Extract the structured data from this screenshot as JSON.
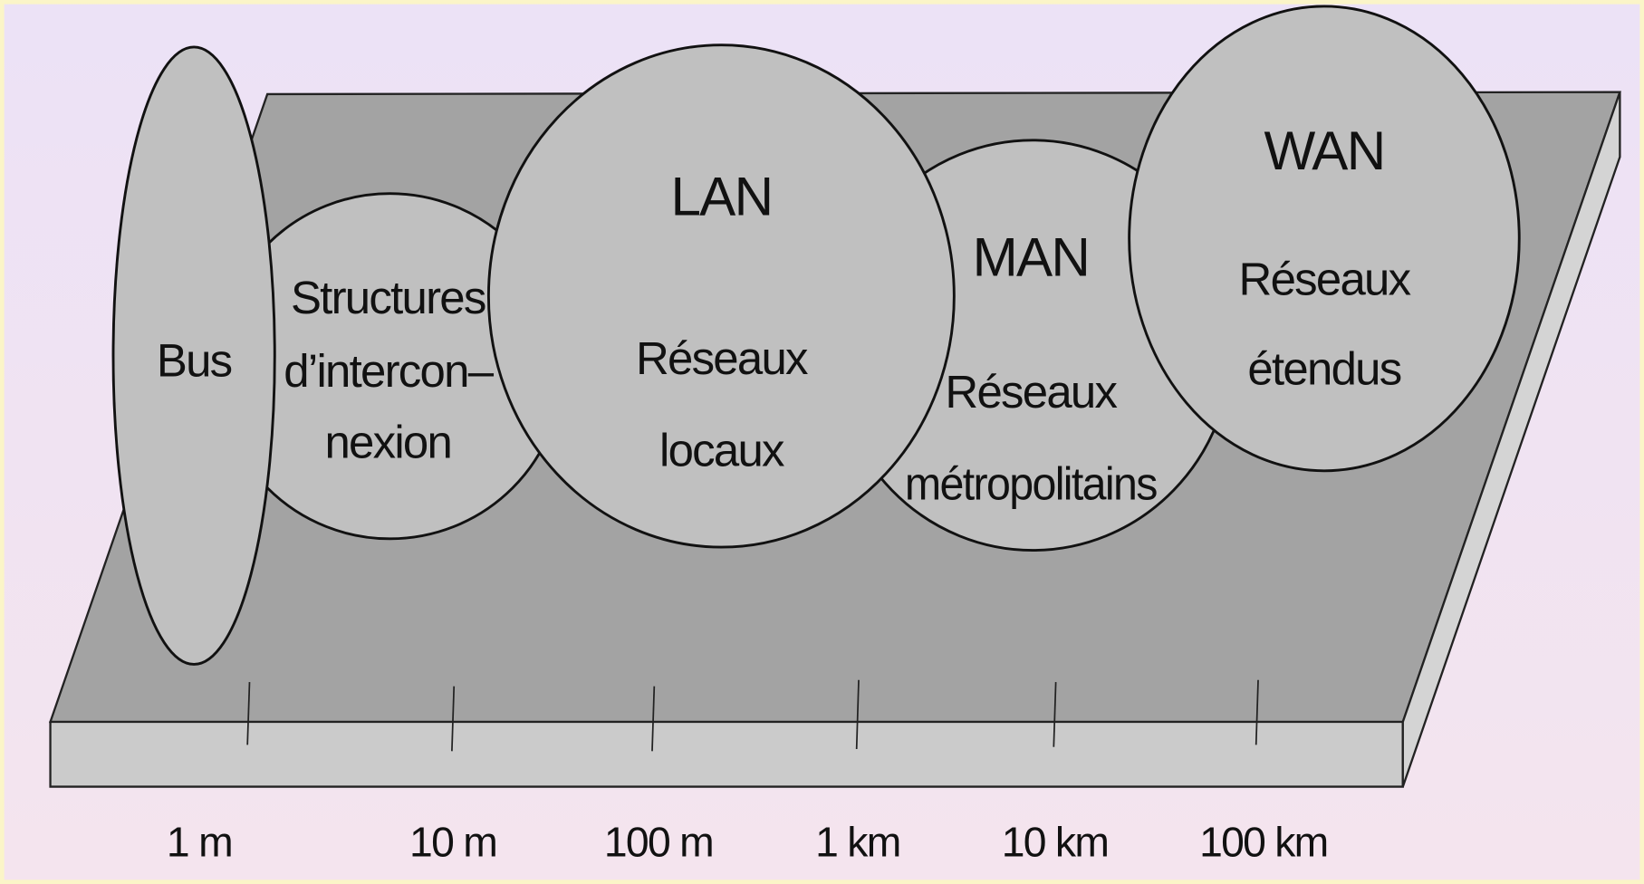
{
  "nodes": [
    {
      "label": "Bus"
    },
    {
      "lines": [
        "Structures",
        "d’intercon–",
        "nexion"
      ]
    },
    {
      "title": "LAN",
      "lines": [
        "Réseaux",
        "locaux"
      ]
    },
    {
      "title": "MAN",
      "lines": [
        "Réseaux",
        "métropolitains"
      ]
    },
    {
      "title": "WAN",
      "lines": [
        "Réseaux",
        "étendus"
      ]
    }
  ],
  "scale": [
    "1 m",
    "10 m",
    "100 m",
    "1 km",
    "10 km",
    "100 km"
  ]
}
